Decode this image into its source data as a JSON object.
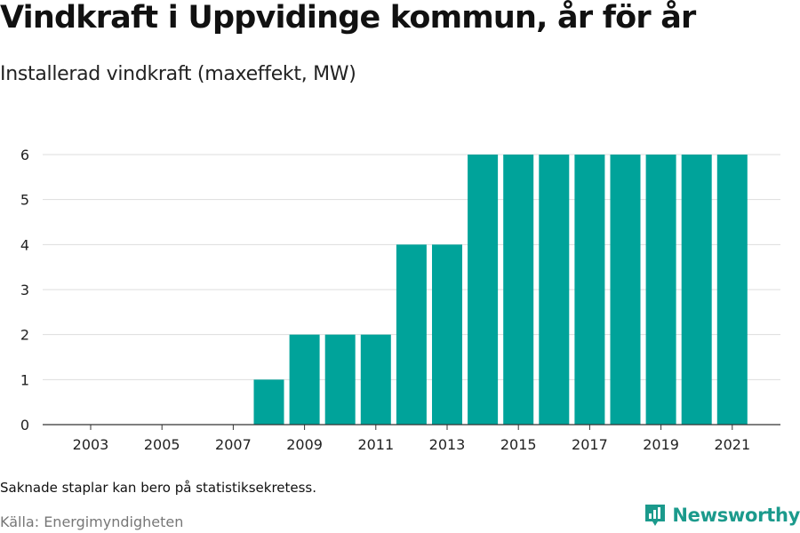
{
  "title": "Vindkraft i Uppvidinge kommun, år för år",
  "subtitle": "Installerad vindkraft (maxeffekt, MW)",
  "note": "Saknade staplar kan bero på statistiksekretess.",
  "source": "Källa: Energimyndigheten",
  "brand": {
    "name": "Newsworthy",
    "icon": "newsworthy-logo-icon"
  },
  "colors": {
    "bar": "#00a39a",
    "brand": "#1b9a8c",
    "grid": "#dddddd",
    "axis": "#333333"
  },
  "chart_data": {
    "type": "bar",
    "categories": [
      "2003",
      "2004",
      "2005",
      "2006",
      "2007",
      "2008",
      "2009",
      "2010",
      "2011",
      "2012",
      "2013",
      "2014",
      "2015",
      "2016",
      "2017",
      "2018",
      "2019",
      "2020",
      "2021"
    ],
    "values": [
      0,
      0,
      0,
      0,
      0,
      1,
      2,
      2,
      2,
      4,
      4,
      6,
      6,
      6,
      6,
      6,
      6,
      6,
      6
    ],
    "x_tick_labels": [
      "2003",
      "2005",
      "2007",
      "2009",
      "2011",
      "2013",
      "2015",
      "2017",
      "2019",
      "2021"
    ],
    "y_ticks": [
      0,
      1,
      2,
      3,
      4,
      5,
      6
    ],
    "ylim": [
      0,
      6
    ],
    "xlabel": "",
    "ylabel": "",
    "grid": true,
    "legend": "none"
  }
}
